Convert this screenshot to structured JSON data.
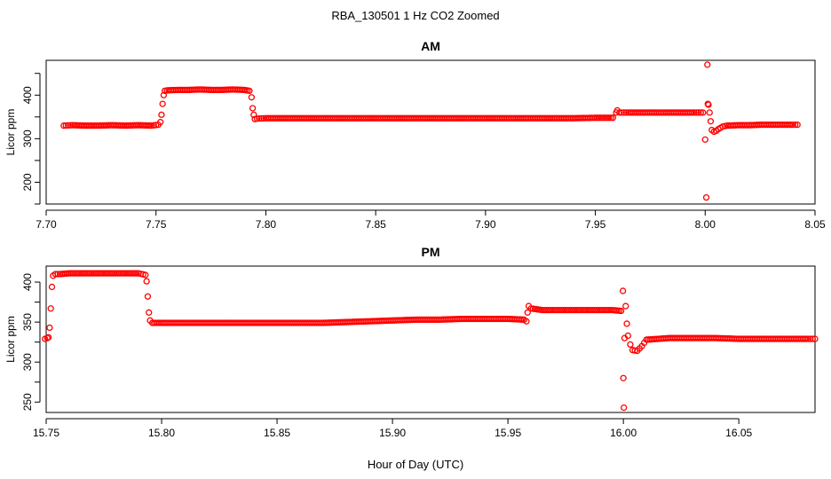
{
  "figure": {
    "title": "RBA_130501  1 Hz CO2 Zoomed",
    "xlabel": "Hour of Day (UTC)",
    "point_color": "#ff0000"
  },
  "chart_data": [
    {
      "type": "scatter",
      "title": "AM",
      "xlabel": "",
      "ylabel": "Licor ppm",
      "xlim": [
        7.7,
        8.05
      ],
      "ylim": [
        150,
        480
      ],
      "xticks": [
        "7.70",
        "7.75",
        "7.80",
        "7.85",
        "7.90",
        "7.95",
        "8.00",
        "8.05"
      ],
      "yticks": [
        "200",
        "300",
        "400"
      ],
      "grid": false,
      "legend": "none",
      "series": [
        {
          "x": [
            7.708,
            7.712,
            7.718,
            7.724,
            7.73,
            7.736,
            7.742,
            7.748,
            7.751,
            7.752,
            7.7525,
            7.753,
            7.7535,
            7.754,
            7.755,
            7.76,
            7.765,
            7.77,
            7.775,
            7.78,
            7.785,
            7.79,
            7.7925,
            7.7935,
            7.794,
            7.7945,
            7.795,
            7.796,
            7.8,
            7.81,
            7.82,
            7.83,
            7.84,
            7.85,
            7.86,
            7.87,
            7.88,
            7.89,
            7.9,
            7.91,
            7.92,
            7.93,
            7.94,
            7.95,
            7.958,
            7.9595,
            7.96,
            7.961,
            7.965,
            7.97,
            7.975,
            7.98,
            7.985,
            7.99,
            7.995,
            7.999,
            8.0,
            8.0005,
            8.001,
            8.0012,
            8.0015,
            8.002,
            8.0025,
            8.003,
            8.004,
            8.005,
            8.006,
            8.008,
            8.01,
            8.015,
            8.02,
            8.025,
            8.03,
            8.035,
            8.04,
            8.042
          ],
          "y": [
            330,
            331,
            330,
            330,
            331,
            330,
            331,
            330,
            332,
            338,
            355,
            380,
            400,
            410,
            411,
            412,
            412,
            413,
            412,
            412,
            413,
            412,
            410,
            395,
            370,
            355,
            345,
            346,
            347,
            347,
            347,
            347,
            347,
            347,
            347,
            347,
            347,
            347,
            347,
            347,
            347,
            347,
            347,
            348,
            348,
            360,
            365,
            360,
            360,
            360,
            360,
            360,
            360,
            360,
            360,
            360,
            298,
            165,
            470,
            380,
            378,
            360,
            340,
            320,
            316,
            318,
            322,
            328,
            330,
            331,
            331,
            332,
            332,
            332,
            332,
            332
          ]
        }
      ]
    },
    {
      "type": "scatter",
      "title": "PM",
      "xlabel": "",
      "ylabel": "Licor ppm",
      "xlim": [
        15.75,
        16.083
      ],
      "ylim": [
        237,
        420
      ],
      "xticks": [
        "15.75",
        "15.80",
        "15.85",
        "15.90",
        "15.95",
        "16.00",
        "16.05"
      ],
      "yticks": [
        "250",
        "300",
        "350",
        "400"
      ],
      "grid": false,
      "legend": "none",
      "series": [
        {
          "x": [
            15.7495,
            15.7505,
            15.751,
            15.7515,
            15.752,
            15.7525,
            15.753,
            15.754,
            15.756,
            15.76,
            15.765,
            15.77,
            15.775,
            15.78,
            15.785,
            15.79,
            15.793,
            15.7935,
            15.794,
            15.7945,
            15.795,
            15.796,
            15.8,
            15.81,
            15.82,
            15.83,
            15.84,
            15.85,
            15.86,
            15.87,
            15.88,
            15.89,
            15.9,
            15.91,
            15.92,
            15.93,
            15.94,
            15.95,
            15.957,
            15.958,
            15.9585,
            15.959,
            15.96,
            15.965,
            15.97,
            15.975,
            15.98,
            15.985,
            15.99,
            15.995,
            15.999,
            15.9998,
            16.0,
            16.0002,
            16.0005,
            16.001,
            16.0015,
            16.002,
            16.003,
            16.004,
            16.006,
            16.008,
            16.01,
            16.02,
            16.03,
            16.04,
            16.05,
            16.06,
            16.07,
            16.08,
            16.083
          ],
          "y": [
            329,
            330,
            331,
            343,
            367,
            394,
            408,
            410,
            410,
            411,
            411,
            411,
            411,
            411,
            411,
            411,
            409,
            401,
            382,
            362,
            352,
            349,
            349,
            349,
            349,
            349,
            349,
            349,
            349,
            349,
            350,
            351,
            352,
            353,
            353,
            354,
            354,
            354,
            353,
            351,
            362,
            370,
            367,
            365,
            365,
            365,
            365,
            365,
            365,
            365,
            364,
            389,
            280,
            243,
            330,
            370,
            348,
            333,
            322,
            315,
            314,
            320,
            328,
            330,
            330,
            330,
            329,
            329,
            329,
            329,
            329
          ]
        }
      ]
    }
  ]
}
